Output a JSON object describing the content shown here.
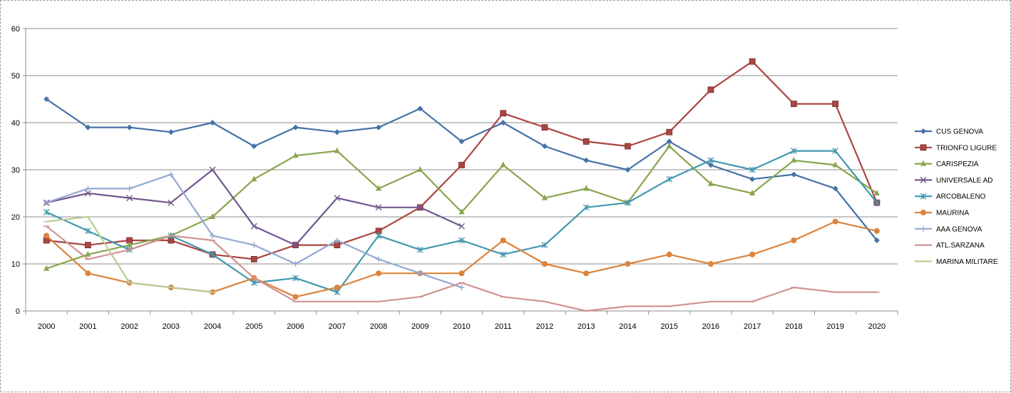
{
  "chart_data": {
    "type": "line",
    "title": "",
    "xlabel": "",
    "ylabel": "",
    "ylim": [
      0,
      60
    ],
    "yticks": [
      0,
      10,
      20,
      30,
      40,
      50,
      60
    ],
    "grid": "horizontal",
    "legend": "right",
    "categories": [
      "2000",
      "2001",
      "2002",
      "2003",
      "2004",
      "2005",
      "2006",
      "2007",
      "2008",
      "2009",
      "2010",
      "2011",
      "2012",
      "2013",
      "2014",
      "2015",
      "2016",
      "2017",
      "2018",
      "2019",
      "2020"
    ],
    "series": [
      {
        "name": "CUS GENOVA",
        "color": "#4572a7",
        "marker": "diamond",
        "values": [
          45,
          39,
          39,
          38,
          40,
          35,
          39,
          38,
          39,
          43,
          36,
          40,
          35,
          32,
          30,
          36,
          31,
          28,
          29,
          26,
          15
        ]
      },
      {
        "name": "TRIONFO LIGURE",
        "color": "#aa4643",
        "marker": "square",
        "values": [
          15,
          14,
          15,
          15,
          12,
          11,
          14,
          14,
          17,
          22,
          31,
          42,
          39,
          36,
          35,
          38,
          47,
          53,
          44,
          44,
          23
        ]
      },
      {
        "name": "CARISPEZIA",
        "color": "#89a54e",
        "marker": "triangle",
        "values": [
          9,
          12,
          14,
          16,
          20,
          28,
          33,
          34,
          26,
          30,
          21,
          31,
          24,
          26,
          23,
          35,
          27,
          25,
          32,
          31,
          25
        ]
      },
      {
        "name": "UNIVERSALE AD",
        "color": "#71588f",
        "marker": "x",
        "values": [
          23,
          25,
          24,
          23,
          30,
          18,
          14,
          24,
          22,
          22,
          18,
          null,
          null,
          null,
          null,
          null,
          null,
          null,
          null,
          null,
          null
        ]
      },
      {
        "name": "ARCOBALENO",
        "color": "#4198af",
        "marker": "star",
        "values": [
          21,
          17,
          13,
          16,
          12,
          6,
          7,
          4,
          16,
          13,
          15,
          12,
          14,
          22,
          23,
          28,
          32,
          30,
          34,
          34,
          23
        ]
      },
      {
        "name": "MAURINA",
        "color": "#db843d",
        "marker": "circle",
        "values": [
          16,
          8,
          6,
          5,
          4,
          7,
          3,
          5,
          8,
          8,
          8,
          15,
          10,
          8,
          10,
          12,
          10,
          12,
          15,
          19,
          17
        ]
      },
      {
        "name": "AAA GENOVA",
        "color": "#93a9cf",
        "marker": "plus",
        "values": [
          23,
          26,
          26,
          29,
          16,
          14,
          10,
          15,
          11,
          8,
          5,
          null,
          null,
          null,
          null,
          null,
          null,
          null,
          null,
          null,
          null
        ]
      },
      {
        "name": "ATL.SARZANA",
        "color": "#d19392",
        "marker": "dash",
        "values": [
          18,
          11,
          13,
          16,
          15,
          7,
          2,
          2,
          2,
          3,
          6,
          3,
          2,
          0,
          1,
          1,
          2,
          2,
          5,
          4,
          4
        ]
      },
      {
        "name": "MARINA MILITARE",
        "color": "#b9cd96",
        "marker": "dash",
        "values": [
          19,
          20,
          6,
          5,
          4,
          null,
          null,
          null,
          null,
          null,
          null,
          null,
          null,
          null,
          null,
          null,
          null,
          null,
          null,
          null,
          null
        ]
      }
    ]
  }
}
